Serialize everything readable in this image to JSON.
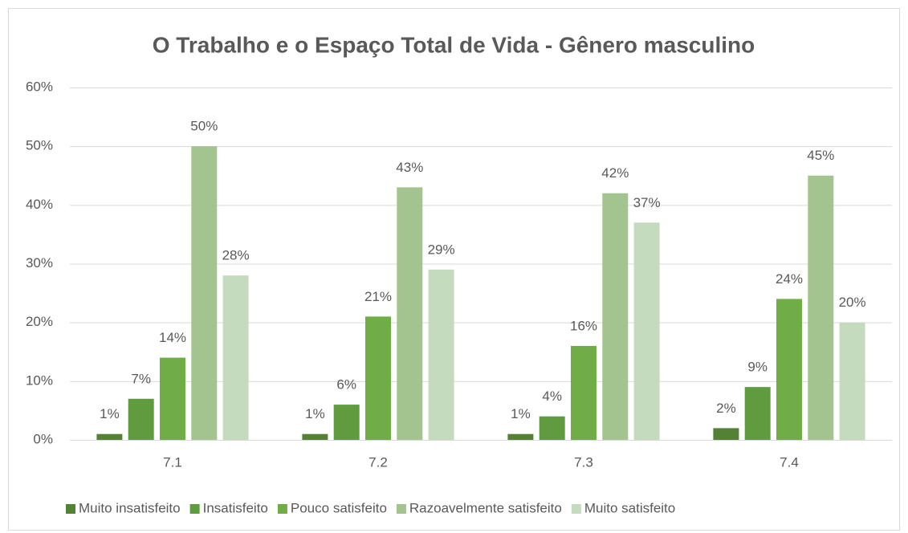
{
  "chart_data": {
    "type": "bar",
    "title": "O Trabalho e o Espaço Total de Vida - Gênero masculino",
    "categories": [
      "7.1",
      "7.2",
      "7.3",
      "7.4"
    ],
    "series": [
      {
        "name": "Muito insatisfeito",
        "color": "#548235",
        "values": [
          1,
          1,
          1,
          2
        ],
        "value_labels": [
          "1%",
          "1%",
          "1%",
          "2%"
        ]
      },
      {
        "name": "Insatisfeito",
        "color": "#5f9b3f",
        "values": [
          7,
          6,
          4,
          9
        ],
        "value_labels": [
          "7%",
          "6%",
          "4%",
          "9%"
        ]
      },
      {
        "name": "Pouco satisfeito",
        "color": "#70ad47",
        "values": [
          14,
          21,
          16,
          24
        ],
        "value_labels": [
          "14%",
          "21%",
          "16%",
          "24%"
        ]
      },
      {
        "name": "Razoavelmente satisfeito",
        "color": "#a3c48f",
        "values": [
          50,
          43,
          42,
          45
        ],
        "value_labels": [
          "50%",
          "43%",
          "42%",
          "45%"
        ]
      },
      {
        "name": "Muito satisfeito",
        "color": "#c5dbbd",
        "values": [
          28,
          29,
          37,
          20
        ],
        "value_labels": [
          "28%",
          "29%",
          "37%",
          "20%"
        ]
      }
    ],
    "ylim": [
      0,
      60
    ],
    "yticks": [
      {
        "value": 0,
        "label": "0%"
      },
      {
        "value": 10,
        "label": "10%"
      },
      {
        "value": 20,
        "label": "20%"
      },
      {
        "value": 30,
        "label": "30%"
      },
      {
        "value": 40,
        "label": "40%"
      },
      {
        "value": 50,
        "label": "50%"
      },
      {
        "value": 60,
        "label": "60%"
      }
    ],
    "grid": true,
    "legend": "bottom"
  }
}
